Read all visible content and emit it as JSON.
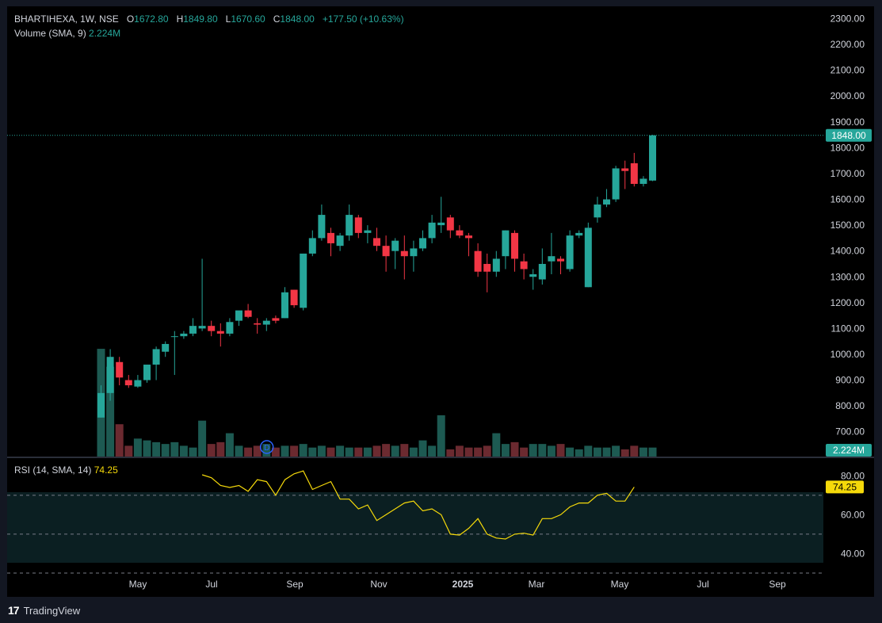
{
  "header": {
    "symbol": "BHARTIHEXA, 1W, NSE",
    "open_label": "O",
    "open": "1672.80",
    "high_label": "H",
    "high": "1849.80",
    "low_label": "L",
    "low": "1670.60",
    "close_label": "C",
    "close": "1848.00",
    "change": "+177.50 (+10.63%)",
    "volume_label": "Volume (SMA, 9)",
    "volume_value": "2.224M"
  },
  "rsi_legend": {
    "label": "RSI (14, SMA, 14)",
    "value": "74.25"
  },
  "price_badge": "1848.00",
  "volume_badge": "2.224M",
  "rsi_badge": "74.25",
  "dividend_marker": "D",
  "footer": {
    "brand": "TradingView",
    "logo": "17"
  },
  "colors": {
    "up": "#26a69a",
    "down": "#f23645",
    "rsi": "#f5d90a",
    "background": "#000000"
  },
  "chart_data": [
    {
      "type": "candlestick",
      "title": "BHARTIHEXA, 1W, NSE",
      "ylim": [
        650,
        2320
      ],
      "y_ticks": [
        "700.00",
        "800.00",
        "900.00",
        "1000.00",
        "1100.00",
        "1200.00",
        "1300.00",
        "1400.00",
        "1500.00",
        "1600.00",
        "1700.00",
        "1800.00",
        "1900.00",
        "2000.00",
        "2100.00",
        "2200.00",
        "2300.00"
      ],
      "x_ticks": [
        "May",
        "Jul",
        "Sep",
        "Nov",
        "2025",
        "Mar",
        "May",
        "Jul",
        "Sep"
      ],
      "last_price": 1848.0,
      "ohlc": [
        [
          755,
          880,
          755,
          850
        ],
        [
          850,
          1020,
          820,
          990
        ],
        [
          970,
          990,
          880,
          910
        ],
        [
          900,
          920,
          870,
          880
        ],
        [
          875,
          920,
          870,
          900
        ],
        [
          900,
          960,
          890,
          960
        ],
        [
          960,
          1030,
          900,
          1020
        ],
        [
          1010,
          1050,
          990,
          1040
        ],
        [
          1070,
          1090,
          920,
          1070
        ],
        [
          1070,
          1090,
          1060,
          1080
        ],
        [
          1080,
          1140,
          1070,
          1110
        ],
        [
          1100,
          1370,
          1090,
          1110
        ],
        [
          1110,
          1130,
          1070,
          1090
        ],
        [
          1090,
          1120,
          1030,
          1080
        ],
        [
          1080,
          1140,
          1070,
          1125
        ],
        [
          1130,
          1160,
          1110,
          1170
        ],
        [
          1170,
          1195,
          1140,
          1145
        ],
        [
          1120,
          1140,
          1080,
          1115
        ],
        [
          1115,
          1140,
          1090,
          1130
        ],
        [
          1140,
          1150,
          1120,
          1130
        ],
        [
          1140,
          1260,
          1140,
          1240
        ],
        [
          1250,
          1250,
          1180,
          1190
        ],
        [
          1180,
          1390,
          1170,
          1390
        ],
        [
          1390,
          1480,
          1380,
          1450
        ],
        [
          1450,
          1580,
          1440,
          1540
        ],
        [
          1470,
          1490,
          1380,
          1430
        ],
        [
          1420,
          1470,
          1400,
          1460
        ],
        [
          1460,
          1580,
          1440,
          1540
        ],
        [
          1530,
          1540,
          1450,
          1470
        ],
        [
          1470,
          1500,
          1430,
          1480
        ],
        [
          1450,
          1490,
          1400,
          1420
        ],
        [
          1420,
          1460,
          1320,
          1380
        ],
        [
          1400,
          1450,
          1330,
          1440
        ],
        [
          1400,
          1460,
          1290,
          1380
        ],
        [
          1380,
          1440,
          1320,
          1410
        ],
        [
          1410,
          1480,
          1400,
          1450
        ],
        [
          1450,
          1540,
          1430,
          1510
        ],
        [
          1500,
          1610,
          1470,
          1510
        ],
        [
          1530,
          1540,
          1450,
          1480
        ],
        [
          1480,
          1500,
          1450,
          1460
        ],
        [
          1460,
          1470,
          1380,
          1450
        ],
        [
          1400,
          1430,
          1300,
          1320
        ],
        [
          1350,
          1390,
          1240,
          1320
        ],
        [
          1320,
          1400,
          1300,
          1370
        ],
        [
          1380,
          1480,
          1330,
          1480
        ],
        [
          1470,
          1480,
          1320,
          1370
        ],
        [
          1360,
          1390,
          1290,
          1330
        ],
        [
          1300,
          1330,
          1250,
          1310
        ],
        [
          1290,
          1410,
          1270,
          1350
        ],
        [
          1360,
          1470,
          1310,
          1380
        ],
        [
          1370,
          1380,
          1310,
          1360
        ],
        [
          1330,
          1480,
          1320,
          1460
        ],
        [
          1460,
          1480,
          1450,
          1470
        ],
        [
          1260,
          1510,
          1260,
          1490
        ],
        [
          1530,
          1610,
          1510,
          1580
        ],
        [
          1580,
          1640,
          1570,
          1600
        ],
        [
          1600,
          1730,
          1590,
          1720
        ],
        [
          1720,
          1750,
          1640,
          1710
        ],
        [
          1740,
          1780,
          1650,
          1660
        ],
        [
          1660,
          1690,
          1650,
          1680
        ],
        [
          1672.8,
          1849.8,
          1670.6,
          1848.0
        ]
      ],
      "volume": [
        6.0,
        5.0,
        1.8,
        0.6,
        1.0,
        0.9,
        0.8,
        0.7,
        0.8,
        0.6,
        0.5,
        2.0,
        0.7,
        0.8,
        1.3,
        0.6,
        0.5,
        0.6,
        0.7,
        0.5,
        0.6,
        0.6,
        0.7,
        0.5,
        0.6,
        0.5,
        0.6,
        0.5,
        0.5,
        0.5,
        0.6,
        0.7,
        0.6,
        0.7,
        0.5,
        0.9,
        0.6,
        2.3,
        0.4,
        0.6,
        0.5,
        0.5,
        0.6,
        1.3,
        0.7,
        0.8,
        0.5,
        0.7,
        0.7,
        0.6,
        0.7,
        0.5,
        0.4,
        0.6,
        0.5,
        0.5,
        0.6,
        0.4,
        0.6,
        0.5,
        0.5
      ],
      "volume_ylim": [
        0,
        6.4
      ],
      "dividend_bar_index": 17
    },
    {
      "type": "line",
      "title": "RSI (14, SMA, 14)",
      "ylim": [
        30,
        85
      ],
      "y_ticks": [
        "40.00",
        "60.00",
        "80.00"
      ],
      "band": [
        30,
        70
      ],
      "midline": 50,
      "start_index": 11,
      "values": [
        80.5,
        79,
        75,
        74,
        75,
        72,
        78,
        77,
        70,
        78,
        81,
        82.5,
        73,
        75,
        77,
        68,
        68,
        63,
        65,
        57,
        60,
        63,
        66,
        67,
        62,
        63,
        60,
        50,
        49.5,
        53,
        58,
        50,
        48,
        47.5,
        50,
        50.5,
        49.5,
        58,
        58,
        60,
        64,
        66,
        66,
        70,
        71,
        67,
        67,
        74.25
      ]
    }
  ]
}
